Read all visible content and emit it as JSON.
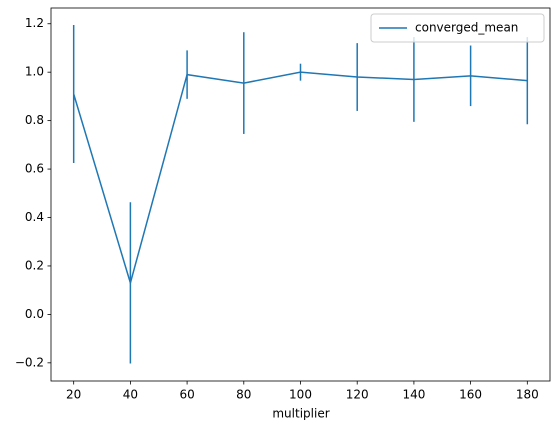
{
  "chart_data": {
    "type": "line",
    "x_label": "multiplier",
    "x": [
      20,
      40,
      60,
      80,
      100,
      120,
      140,
      160,
      180
    ],
    "series": [
      {
        "name": "converged_mean",
        "color": "#1f77b4",
        "values": [
          0.91,
          0.13,
          0.99,
          0.955,
          1.0,
          0.98,
          0.97,
          0.985,
          0.965
        ],
        "errors": [
          0.285,
          0.333,
          0.1,
          0.21,
          0.035,
          0.14,
          0.175,
          0.125,
          0.18
        ]
      }
    ],
    "xlim": [
      12,
      188
    ],
    "xticks": [
      20,
      40,
      60,
      80,
      100,
      120,
      140,
      160,
      180
    ],
    "ylim": [
      -0.275,
      1.265
    ],
    "yticks": [
      {
        "value": -0.2,
        "label": "−0.2"
      },
      {
        "value": 0,
        "label": "0.0"
      },
      0.2,
      0.4,
      0.6,
      0.8,
      {
        "value": 1,
        "label": "1.0"
      },
      1.2
    ],
    "legend": "upper right"
  }
}
